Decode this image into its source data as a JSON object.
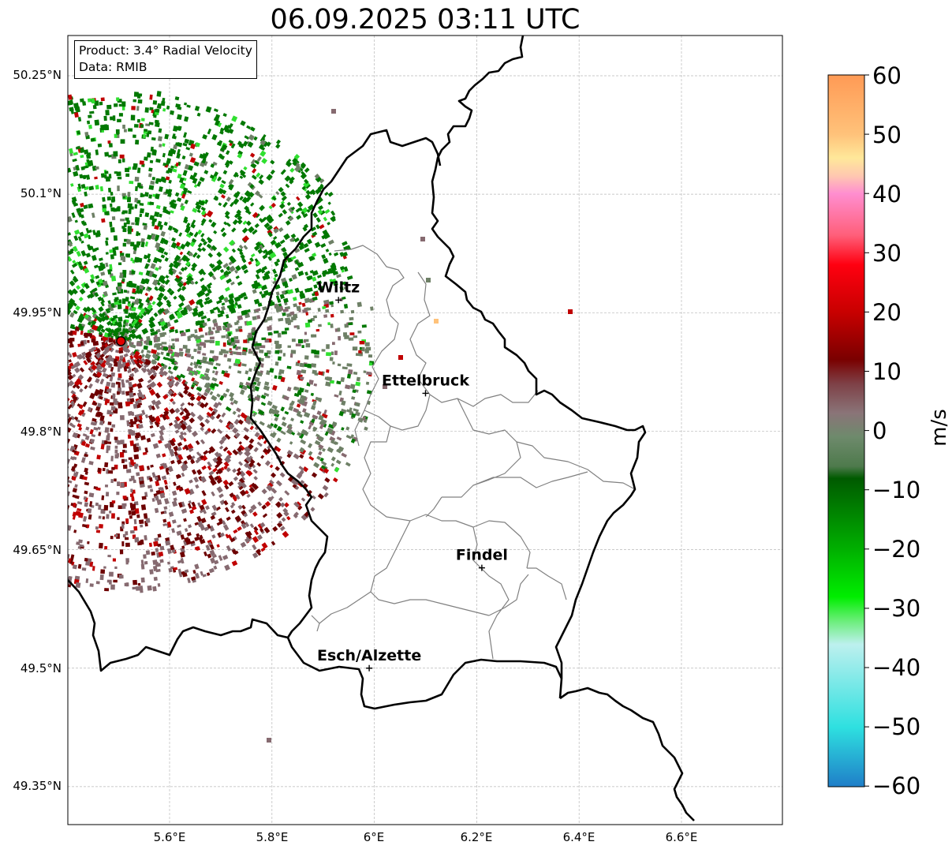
{
  "title": "06.09.2025 03:11 UTC",
  "infobox": {
    "product_line": "Product: 3.4° Radial Velocity",
    "data_line": "Data: RMIB"
  },
  "axes": {
    "lon_ticks": [
      "5.6°E",
      "5.8°E",
      "6°E",
      "6.2°E",
      "6.4°E",
      "6.6°E"
    ],
    "lat_ticks": [
      "50.25°N",
      "50.1°N",
      "49.95°N",
      "49.8°N",
      "49.65°N",
      "49.5°N",
      "49.35°N"
    ],
    "grid": true
  },
  "cities": [
    {
      "name": "Wiltz",
      "lon": 5.93,
      "lat": 49.966
    },
    {
      "name": "Ettelbruck",
      "lon": 6.1,
      "lat": 49.848
    },
    {
      "name": "Findel",
      "lon": 6.21,
      "lat": 49.627
    },
    {
      "name": "Esch/Alzette",
      "lon": 5.99,
      "lat": 49.5
    }
  ],
  "radar_site": {
    "lon": 5.505,
    "lat": 49.914,
    "color": "#e00000"
  },
  "colorbar": {
    "label": "m/s",
    "ticks": [
      "60",
      "50",
      "40",
      "30",
      "20",
      "10",
      "0",
      "−10",
      "−20",
      "−30",
      "−40",
      "−50",
      "−60"
    ],
    "range": [
      -60,
      60
    ],
    "stops": [
      {
        "v": 60,
        "c": "#ff9a55"
      },
      {
        "v": 50,
        "c": "#ffc27a"
      },
      {
        "v": 46,
        "c": "#ffe89a"
      },
      {
        "v": 43,
        "c": "#ffc8b0"
      },
      {
        "v": 40,
        "c": "#ff8ed0"
      },
      {
        "v": 33,
        "c": "#ff5f7a"
      },
      {
        "v": 28,
        "c": "#ff0010"
      },
      {
        "v": 20,
        "c": "#c80000"
      },
      {
        "v": 12,
        "c": "#7a0000"
      },
      {
        "v": 8,
        "c": "#7e4046"
      },
      {
        "v": 3,
        "c": "#8a7478"
      },
      {
        "v": -1,
        "c": "#6e8a6c"
      },
      {
        "v": -6,
        "c": "#4e7a4c"
      },
      {
        "v": -8,
        "c": "#005a00"
      },
      {
        "v": -20,
        "c": "#00b000"
      },
      {
        "v": -28,
        "c": "#00ee00"
      },
      {
        "v": -32,
        "c": "#6aee78"
      },
      {
        "v": -36,
        "c": "#bdf0ee"
      },
      {
        "v": -50,
        "c": "#2ee0e0"
      },
      {
        "v": -60,
        "c": "#1f7ec8"
      }
    ]
  },
  "colors": {
    "border": "#000000",
    "admin_lines": "#808080",
    "grid": "#b8b8b8",
    "receding_dark": "#6d0000",
    "receding": "#c00000",
    "near_zero_pos": "#866a70",
    "near_zero_neg": "#6e8066",
    "approaching": "#007800",
    "approaching_bright": "#30e030"
  }
}
